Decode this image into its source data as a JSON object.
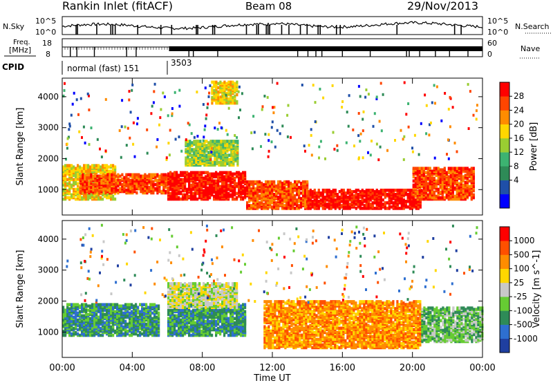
{
  "header": {
    "station": "Rankin Inlet (fitACF)",
    "beam": "Beam 08",
    "date": "29/Nov/2013"
  },
  "noise_panel": {
    "left_label": "N.Sky",
    "right_label": "N.Search",
    "left_ticks": [
      "10^5",
      "10^0"
    ],
    "right_ticks": [
      "10^5",
      "10^0"
    ]
  },
  "freq_panel": {
    "left_label_1": "Freq.",
    "left_label_2": "[MHz]",
    "right_label": "Nave",
    "left_ticks": [
      "18",
      "8"
    ],
    "right_ticks": [
      "60",
      "0"
    ]
  },
  "cpid_panel": {
    "label": "CPID",
    "segments": [
      {
        "start_hour": 0.0,
        "end_hour": 6.1,
        "text": "normal (fast) 151"
      },
      {
        "start_hour": 6.1,
        "end_hour": 24.0,
        "text": "3503"
      }
    ]
  },
  "power_panel": {
    "ylabel": "Slant Range [km]",
    "yticks": [
      "4000",
      "3000",
      "2000",
      "1000"
    ],
    "colorbar_label": "Power [dB]",
    "colorbar_ticks": [
      "28",
      "24",
      "20",
      "16",
      "12",
      "8",
      "4"
    ],
    "colors": [
      "#0000ff",
      "#1f4fa8",
      "#2e8b57",
      "#3cb371",
      "#9acd32",
      "#ffd700",
      "#ff8c00",
      "#ff4500",
      "#ff0000"
    ]
  },
  "velocity_panel": {
    "ylabel": "Slant Range [km]",
    "yticks": [
      "4000",
      "3000",
      "2000",
      "1000"
    ],
    "colorbar_label": "Velocity [m s^-1]",
    "colorbar_ticks": [
      "1000",
      "500",
      "100",
      "25",
      "-25",
      "-100",
      "-500",
      "-1000"
    ],
    "colors": [
      "#1f3fa0",
      "#2e6fd0",
      "#2e8b57",
      "#66cc33",
      "#c8c8c8",
      "#ffd700",
      "#ff8c00",
      "#ff5000",
      "#ff0000"
    ]
  },
  "x_axis": {
    "label": "Time UT",
    "ticks": [
      "00:00",
      "04:00",
      "08:00",
      "12:00",
      "16:00",
      "20:00",
      "00:00"
    ]
  },
  "chart_data": {
    "type": "heatmap",
    "title": "Rankin Inlet (fitACF) Beam 08 29/Nov/2013",
    "xlabel": "Time UT",
    "ylabel": "Slant Range [km]",
    "xlim_hours": [
      0,
      24
    ],
    "ylim_km": [
      180,
      4600
    ],
    "power_colorbar": {
      "label": "Power [dB]",
      "ticks": [
        28,
        24,
        20,
        16,
        12,
        8,
        4
      ]
    },
    "velocity_colorbar": {
      "label": "Velocity [m s-1]",
      "ticks": [
        1000,
        500,
        100,
        25,
        -25,
        -100,
        -500,
        -1000
      ]
    },
    "power_regions": [
      {
        "t0": 0.0,
        "t1": 3.0,
        "r0": 700,
        "r1": 1800,
        "level": 5
      },
      {
        "t0": 1.0,
        "t1": 6.0,
        "r0": 900,
        "r1": 1500,
        "level": 7
      },
      {
        "t0": 6.0,
        "t1": 10.5,
        "r0": 700,
        "r1": 1600,
        "level": 8
      },
      {
        "t0": 10.5,
        "t1": 14.0,
        "r0": 400,
        "r1": 1300,
        "level": 7
      },
      {
        "t0": 14.0,
        "t1": 20.5,
        "r0": 400,
        "r1": 1000,
        "level": 8
      },
      {
        "t0": 20.0,
        "t1": 23.5,
        "r0": 700,
        "r1": 1700,
        "level": 7
      },
      {
        "t0": 7.0,
        "t1": 10.0,
        "r0": 1800,
        "r1": 2600,
        "level": 4
      },
      {
        "t0": 8.5,
        "t1": 10.0,
        "r0": 3800,
        "r1": 4500,
        "level": 5
      }
    ],
    "velocity_regions": [
      {
        "t0": 0.0,
        "t1": 5.5,
        "r0": 900,
        "r1": 1900,
        "level": 2
      },
      {
        "t0": 6.0,
        "t1": 10.5,
        "r0": 900,
        "r1": 1900,
        "level": 2
      },
      {
        "t0": 6.0,
        "t1": 10.0,
        "r0": 1800,
        "r1": 2600,
        "level": 4
      },
      {
        "t0": 11.5,
        "t1": 20.5,
        "r0": 500,
        "r1": 2000,
        "level": 6
      },
      {
        "t0": 20.5,
        "t1": 24.0,
        "r0": 700,
        "r1": 1800,
        "level": 3
      }
    ]
  }
}
